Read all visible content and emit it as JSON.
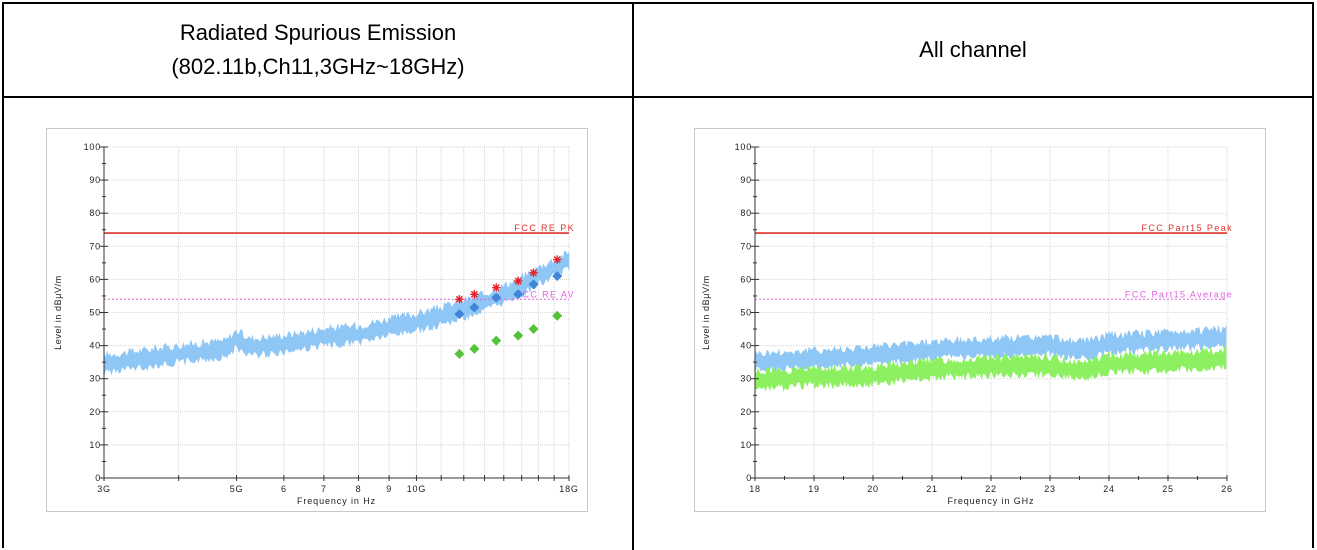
{
  "header": {
    "left_line1": "Radiated Spurious Emission",
    "left_line2": "(802.11b,Ch11,3GHz~18GHz)",
    "right": "All channel"
  },
  "colors": {
    "limit_pk": "#e0302a",
    "limit_av": "#e060e0",
    "noise_peak": "#8ec6f5",
    "noise_avg": "#8cf060",
    "marker_peak": "#e8202a",
    "marker_qp": "#3f86d8",
    "marker_av": "#55c23a"
  },
  "chart_data": [
    {
      "type": "line",
      "xscale": "log",
      "xlabel": "Frequency in Hz",
      "ylabel": "Level in dBμV/m",
      "xlim": [
        3,
        18
      ],
      "ylim": [
        0,
        100
      ],
      "x_ticks": [
        3,
        5,
        6,
        7,
        8,
        9,
        10,
        18
      ],
      "x_tick_labels": [
        "3G",
        "5G",
        "6",
        "7",
        "8",
        "9",
        "10G",
        "18G"
      ],
      "y_ticks": [
        0,
        10,
        20,
        30,
        40,
        50,
        60,
        70,
        80,
        90,
        100
      ],
      "grid": true,
      "limit_lines": [
        {
          "label": "FCC RE PK",
          "value": 74,
          "color": "#e0302a",
          "dashed": false
        },
        {
          "label": "FCC RE AV",
          "value": 54,
          "color": "#e060e0",
          "dashed": true
        }
      ],
      "noise_traces": [
        {
          "color": "#8ec6f5",
          "points": [
            [
              3,
              34.5
            ],
            [
              4,
              37.5
            ],
            [
              4.8,
              39
            ],
            [
              5,
              42
            ],
            [
              5.25,
              39.5
            ],
            [
              6,
              40.5
            ],
            [
              7,
              42.5
            ],
            [
              8,
              43.5
            ],
            [
              9,
              45.5
            ],
            [
              10,
              47
            ],
            [
              11,
              49
            ],
            [
              12,
              51
            ],
            [
              13,
              53
            ],
            [
              14,
              55.5
            ],
            [
              15,
              58
            ],
            [
              16,
              61
            ],
            [
              17,
              63.5
            ],
            [
              18,
              65.5
            ]
          ]
        }
      ],
      "markers": [
        {
          "name": "peak",
          "shape": "star",
          "color": "#e8202a",
          "x": [
            11.8,
            12.5,
            13.6,
            14.8,
            15.7,
            17.2
          ],
          "y": [
            54,
            55.5,
            57.5,
            59.5,
            62,
            66
          ]
        },
        {
          "name": "qp",
          "shape": "diamond",
          "color": "#3f86d8",
          "x": [
            11.8,
            12.5,
            13.6,
            14.8,
            15.7,
            17.2
          ],
          "y": [
            49.5,
            51.5,
            54.5,
            55.5,
            58.5,
            61
          ]
        },
        {
          "name": "av",
          "shape": "diamond",
          "color": "#55c23a",
          "x": [
            11.8,
            12.5,
            13.6,
            14.8,
            15.7,
            17.2
          ],
          "y": [
            37.5,
            39,
            41.5,
            43,
            45,
            49
          ]
        }
      ]
    },
    {
      "type": "line",
      "xscale": "linear",
      "xlabel": "Frequency in GHz",
      "ylabel": "Level in dBμV/m",
      "xlim": [
        18,
        26
      ],
      "ylim": [
        0,
        100
      ],
      "x_ticks": [
        18,
        19,
        20,
        21,
        22,
        23,
        24,
        25,
        26
      ],
      "x_tick_labels": [
        "18",
        "19",
        "20",
        "21",
        "22",
        "23",
        "24",
        "25",
        "26"
      ],
      "y_ticks": [
        0,
        10,
        20,
        30,
        40,
        50,
        60,
        70,
        80,
        90,
        100
      ],
      "grid": true,
      "limit_lines": [
        {
          "label": "FCC Part15 Peak",
          "value": 74,
          "color": "#e0302a",
          "dashed": false
        },
        {
          "label": "FCC Part15 Average",
          "value": 54,
          "color": "#e060e0",
          "dashed": true
        }
      ],
      "noise_traces": [
        {
          "color": "#8ec6f5",
          "points": [
            [
              18,
              35
            ],
            [
              19,
              36
            ],
            [
              20,
              37
            ],
            [
              21,
              38.5
            ],
            [
              22,
              39.5
            ],
            [
              23,
              40
            ],
            [
              23.5,
              38.5
            ],
            [
              24,
              40.5
            ],
            [
              25,
              41.5
            ],
            [
              26,
              42.5
            ]
          ]
        },
        {
          "color": "#8cf060",
          "points": [
            [
              18,
              29.5
            ],
            [
              19,
              30.5
            ],
            [
              20,
              31
            ],
            [
              21,
              33
            ],
            [
              22,
              33.5
            ],
            [
              23,
              34
            ],
            [
              23.5,
              32.5
            ],
            [
              24,
              34.5
            ],
            [
              25,
              35
            ],
            [
              26,
              36
            ]
          ]
        }
      ],
      "markers": []
    }
  ]
}
